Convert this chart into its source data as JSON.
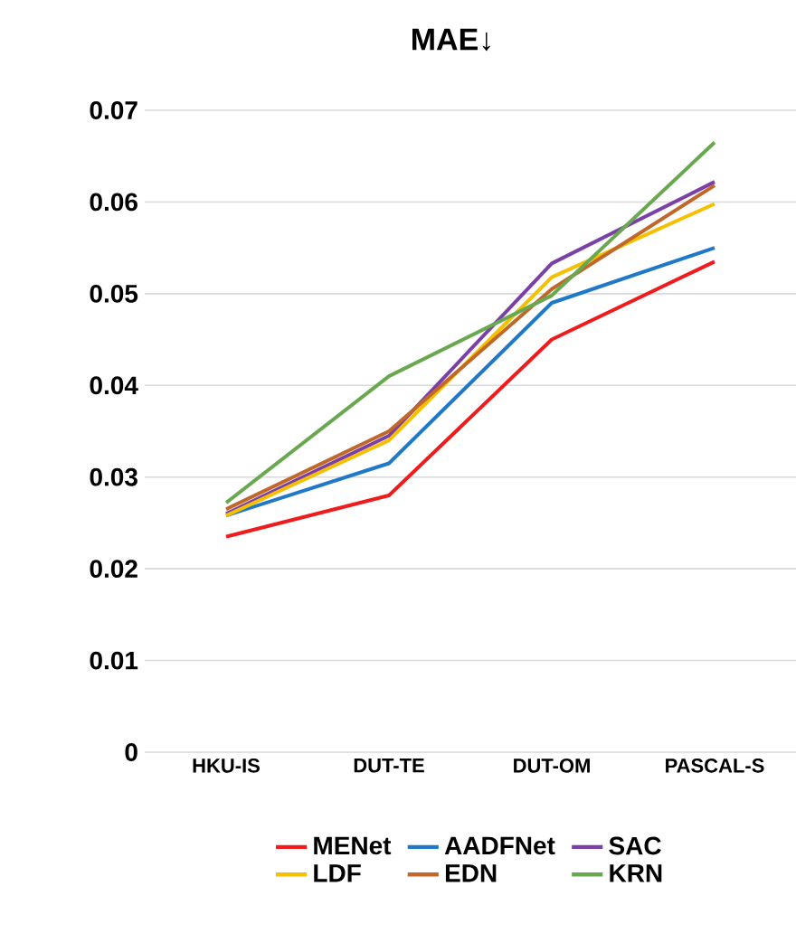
{
  "chart_data": {
    "type": "line",
    "title": "MAE↓",
    "categories": [
      "HKU-IS",
      "DUT-TE",
      "DUT-OM",
      "PASCAL-S"
    ],
    "series": [
      {
        "name": "MENet",
        "color": "#ee1c1c",
        "values": [
          0.0235,
          0.028,
          0.045,
          0.0535
        ]
      },
      {
        "name": "AADFNet",
        "color": "#1f78c8",
        "values": [
          0.0258,
          0.0315,
          0.049,
          0.055
        ]
      },
      {
        "name": "SAC",
        "color": "#7b3fa8",
        "values": [
          0.026,
          0.0345,
          0.0533,
          0.0622
        ]
      },
      {
        "name": "LDF",
        "color": "#f5c000",
        "values": [
          0.0258,
          0.034,
          0.0518,
          0.0598
        ]
      },
      {
        "name": "EDN",
        "color": "#c0672a",
        "values": [
          0.0265,
          0.035,
          0.0505,
          0.0618
        ]
      },
      {
        "name": "KRN",
        "color": "#6aa84f",
        "values": [
          0.0272,
          0.041,
          0.0498,
          0.0665
        ]
      }
    ],
    "ylim": [
      0,
      0.07
    ],
    "yticks": [
      0,
      0.01,
      0.02,
      0.03,
      0.04,
      0.05,
      0.06,
      0.07
    ],
    "grid": "y",
    "legend": "bottom",
    "marker": "none",
    "line_style": "solid"
  }
}
